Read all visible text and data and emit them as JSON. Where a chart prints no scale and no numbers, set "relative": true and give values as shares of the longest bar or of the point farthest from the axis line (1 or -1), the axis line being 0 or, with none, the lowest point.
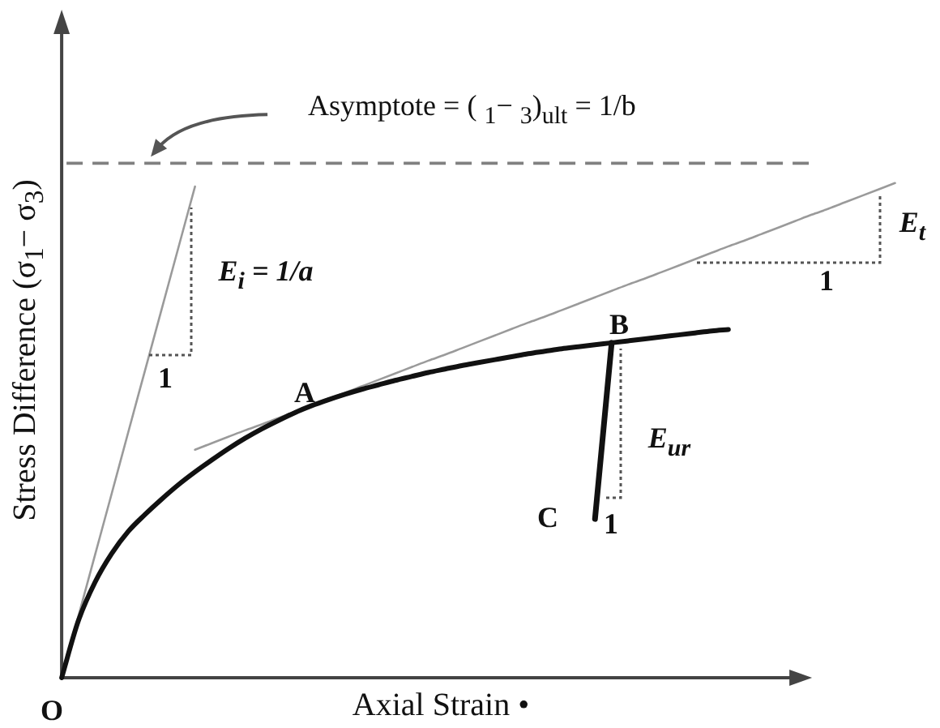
{
  "chart_data": {
    "type": "line",
    "relative": true,
    "xlabel": "Axial Strain •",
    "ylabel": "Stress Difference (σ$_{1}$− σ$_{3}$)",
    "categories": [
      null,
      null,
      null,
      null,
      null,
      null,
      null,
      null,
      null,
      null,
      null,
      null,
      null,
      null,
      null,
      null,
      null,
      null,
      null,
      null,
      null,
      null,
      null,
      null,
      null,
      null,
      null,
      null,
      null,
      null,
      null,
      null,
      null,
      null,
      null,
      null,
      null,
      null,
      null,
      null,
      null,
      null,
      null,
      null,
      null,
      null,
      null,
      null,
      null,
      null,
      null
    ],
    "series": [
      {
        "color": "#111111",
        "values": [
          0,
          0.115,
          0.193,
          0.251,
          0.296,
          0.33,
          0.361,
          0.39,
          0.416,
          0.44,
          0.463,
          0.484,
          0.503,
          0.52,
          0.536,
          0.55,
          0.562,
          0.573,
          0.583,
          0.592,
          0.601,
          0.609,
          0.617,
          0.624,
          0.631,
          0.637,
          0.643,
          0.649,
          0.655,
          0.66,
          0.665,
          0.669,
          0.673,
          0.677,
          0.681,
          0.685,
          0.689,
          0.693,
          0.697,
          0.701,
          0.704,
          null,
          null,
          null,
          null,
          null,
          null,
          null,
          null,
          null,
          null
        ]
      },
      {
        "color": "#9a9a9a",
        "values": [
          0,
          0.124,
          0.248,
          0.372,
          0.497,
          0.621,
          0.745,
          0.869,
          0.993,
          null,
          null,
          null,
          null,
          null,
          null,
          null,
          null,
          null,
          null,
          null,
          null,
          null,
          null,
          null,
          null,
          null,
          null,
          null,
          null,
          null,
          null,
          null,
          null,
          null,
          null,
          null,
          null,
          null,
          null,
          null,
          null,
          null,
          null,
          null,
          null,
          null,
          null,
          null,
          null,
          null,
          null
        ]
      },
      {
        "color": "#9a9a9a",
        "values": [
          null,
          null,
          null,
          null,
          null,
          null,
          null,
          null,
          0.461,
          0.474,
          0.487,
          0.5,
          0.512,
          0.525,
          0.538,
          0.551,
          0.564,
          0.576,
          0.589,
          0.602,
          0.615,
          0.628,
          0.641,
          0.653,
          0.666,
          0.679,
          0.692,
          0.705,
          0.718,
          0.73,
          0.743,
          0.756,
          0.769,
          0.782,
          0.795,
          0.807,
          0.82,
          0.833,
          0.846,
          0.859,
          0.872,
          0.884,
          0.897,
          0.91,
          0.923,
          0.936,
          0.948,
          0.961,
          0.974,
          0.987,
          1
        ]
      },
      {
        "color": "#111111",
        "values": [
          null,
          null,
          null,
          null,
          null,
          null,
          null,
          null,
          null,
          null,
          null,
          null,
          null,
          null,
          null,
          null,
          null,
          null,
          null,
          null,
          null,
          null,
          null,
          null,
          null,
          null,
          null,
          null,
          null,
          null,
          null,
          null,
          0.321,
          0.677,
          null,
          null,
          null,
          null,
          null,
          null,
          null,
          null,
          null,
          null,
          null,
          null,
          null,
          null,
          null,
          null,
          null
        ]
      }
    ],
    "ref_lines": [
      {
        "axis": "y",
        "value": 1.04,
        "label": "Asymptote = ( $_{1}$− $_{3}$)$_{ult}$ = 1/b",
        "color": "#808080",
        "line_style": "dashed"
      }
    ],
    "annotations": [
      "O",
      "A",
      "B",
      "C",
      "1",
      "E$_{i}$ = 1/a",
      "E$_{t}$",
      "1",
      "E$_{ur}$",
      "1"
    ]
  }
}
